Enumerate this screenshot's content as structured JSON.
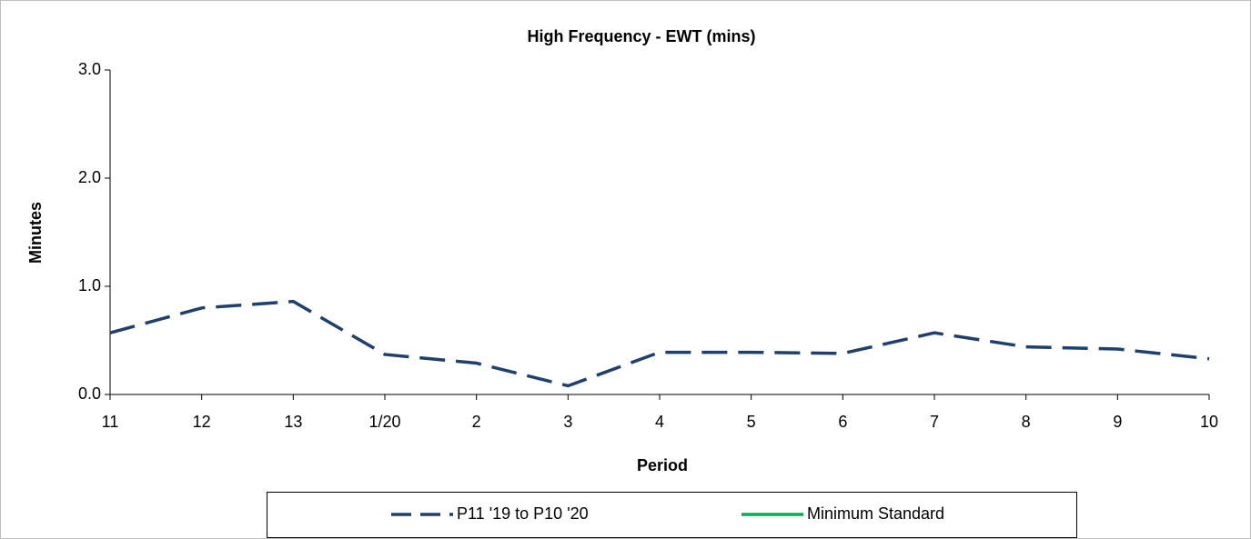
{
  "chart_data": {
    "type": "line",
    "title": "High Frequency - EWT (mins)",
    "x_label": "Period",
    "y_label": "Minutes",
    "categories": [
      "11",
      "12",
      "13",
      "1/20",
      "2",
      "3",
      "4",
      "5",
      "6",
      "7",
      "8",
      "9",
      "10"
    ],
    "series": [
      {
        "name": "P11 '19 to P10 '20",
        "color": "#1f3f6e",
        "dashed": true,
        "values": [
          0.57,
          0.8,
          0.86,
          0.37,
          0.29,
          0.08,
          0.39,
          0.39,
          0.38,
          0.57,
          0.44,
          0.42,
          0.33
        ]
      },
      {
        "name": "Minimum Standard",
        "color": "#00b050",
        "dashed": false,
        "values": [
          null,
          null,
          null,
          null,
          null,
          null,
          null,
          null,
          null,
          null,
          null,
          null,
          null
        ]
      }
    ],
    "ylim": [
      0,
      3
    ],
    "yticks": [
      {
        "value": 0,
        "label": "0.0"
      },
      {
        "value": 1,
        "label": "1.0"
      },
      {
        "value": 2,
        "label": "2.0"
      },
      {
        "value": 3,
        "label": "3.0"
      }
    ],
    "grid": false,
    "legend": "bottom"
  }
}
